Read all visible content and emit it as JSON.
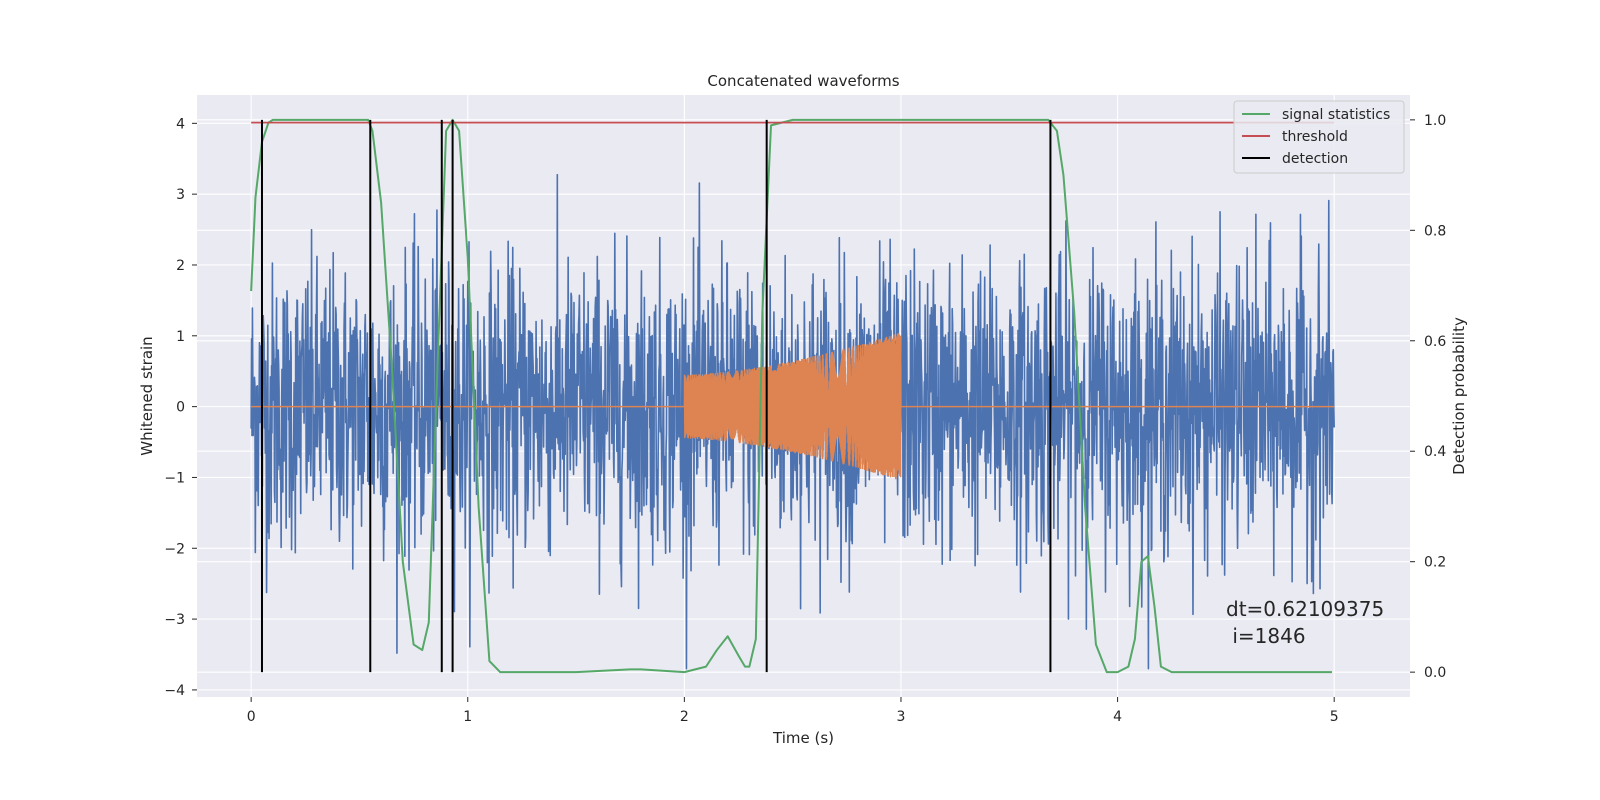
{
  "chart_data": {
    "type": "line",
    "title": "Concatenated waveforms",
    "xlabel": "Time (s)",
    "ylabel": "Whitened strain",
    "ylabel_right": "Detection probability",
    "xlim": [
      -0.25,
      5.35
    ],
    "ylim": [
      -4.1,
      4.4
    ],
    "ylim_right": [
      -0.045,
      1.045
    ],
    "x_ticks": [
      0,
      1,
      2,
      3,
      4,
      5
    ],
    "y_ticks": [
      -4,
      -3,
      -2,
      -1,
      0,
      1,
      2,
      3,
      4
    ],
    "y_ticks_right": [
      0.0,
      0.2,
      0.4,
      0.6,
      0.8,
      1.0
    ],
    "y_tick_labels_right": [
      "0.0",
      "0.2",
      "0.4",
      "0.6",
      "0.8",
      "1.0"
    ],
    "grid": true,
    "legend_position": "top-right",
    "colors": {
      "strain": "#4c72b0",
      "injection": "#dd8452",
      "signal_statistics": "#55a868",
      "threshold": "#c44e52",
      "detection": "#000000",
      "background": "#eaeaf2",
      "grid": "#ffffff"
    },
    "series": [
      {
        "name": "",
        "axis": "left",
        "description": "whitened strain noise",
        "x_range": [
          0,
          5
        ],
        "typical_amplitude": 1.0,
        "max_abs": 3.7
      },
      {
        "name": "",
        "axis": "left",
        "description": "injected chirp",
        "x_range": [
          2,
          3
        ],
        "amp_start": 0.45,
        "amp_end": 1.05
      },
      {
        "name": "signal statistics",
        "axis": "right",
        "x": [
          0.0,
          0.02,
          0.05,
          0.08,
          0.1,
          0.2,
          0.3,
          0.4,
          0.5,
          0.54,
          0.56,
          0.6,
          0.65,
          0.7,
          0.75,
          0.79,
          0.82,
          0.86,
          0.9,
          0.93,
          0.96,
          1.0,
          1.05,
          1.1,
          1.15,
          1.2,
          1.5,
          1.75,
          1.8,
          2.0,
          2.1,
          2.15,
          2.2,
          2.25,
          2.28,
          2.3,
          2.33,
          2.36,
          2.4,
          2.5,
          3.0,
          3.5,
          3.68,
          3.72,
          3.75,
          3.8,
          3.85,
          3.9,
          3.95,
          4.0,
          4.05,
          4.08,
          4.11,
          4.14,
          4.17,
          4.2,
          4.25,
          4.3,
          4.6,
          4.99
        ],
        "y": [
          0.69,
          0.86,
          0.96,
          0.995,
          1.0,
          1.0,
          1.0,
          1.0,
          1.0,
          1.0,
          0.98,
          0.85,
          0.55,
          0.2,
          0.05,
          0.04,
          0.09,
          0.55,
          0.98,
          1.0,
          0.98,
          0.75,
          0.3,
          0.02,
          0.0,
          0.0,
          0.0,
          0.005,
          0.005,
          0.0,
          0.01,
          0.04,
          0.065,
          0.03,
          0.01,
          0.01,
          0.06,
          0.65,
          0.99,
          1.0,
          1.0,
          1.0,
          1.0,
          0.98,
          0.9,
          0.65,
          0.3,
          0.05,
          0.0,
          0.0,
          0.01,
          0.06,
          0.2,
          0.21,
          0.12,
          0.01,
          0.0,
          0.0,
          0.0,
          0.0
        ]
      },
      {
        "name": "threshold",
        "axis": "right",
        "x": [
          0,
          5
        ],
        "y": [
          0.995,
          0.995
        ]
      },
      {
        "name": "detection",
        "axis": "right",
        "type": "vlines",
        "x": [
          0.05,
          0.55,
          0.88,
          0.93,
          2.38,
          3.69
        ],
        "ymin": 0.0,
        "ymax": 1.0
      }
    ],
    "legend": [
      "signal statistics",
      "threshold",
      "detection"
    ],
    "annotation": {
      "lines": [
        "dt=0.62109375",
        " i=1846"
      ],
      "position": "lower-right"
    }
  }
}
